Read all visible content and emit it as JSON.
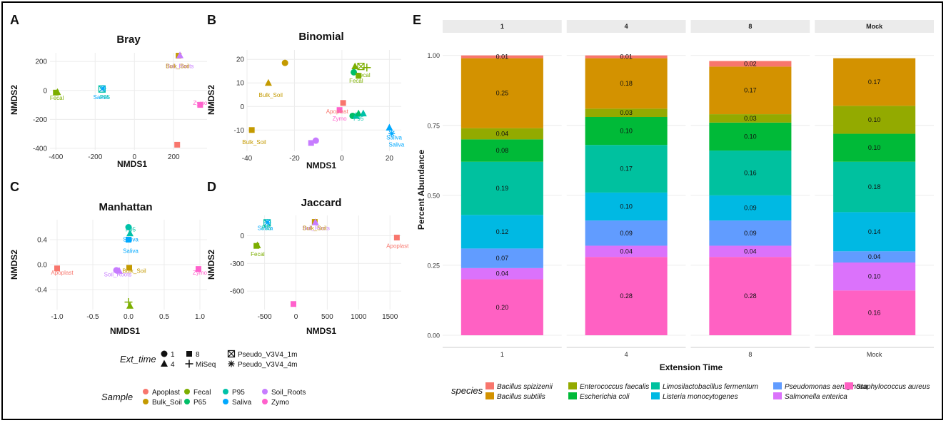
{
  "chart_data": [
    {
      "panel": "A",
      "type": "scatter",
      "title": "Bray",
      "xlabel": "NMDS1",
      "ylabel": "NMDS2",
      "xlim": [
        -430,
        370
      ],
      "ylim": [
        -410,
        260
      ],
      "xticks": [
        -400,
        -200,
        0,
        200
      ],
      "yticks": [
        200,
        0,
        -200,
        -400
      ],
      "points": [
        {
          "x": -400,
          "y": -15,
          "sample": "Fecal",
          "ext": "8"
        },
        {
          "x": -392,
          "y": -12,
          "sample": "Fecal",
          "ext": "4"
        },
        {
          "x": -165,
          "y": 10,
          "sample": "P95",
          "ext": "Pseudo_V3V4_1m"
        },
        {
          "x": -160,
          "y": 14,
          "sample": "Saliva",
          "ext": "Pseudo_V3V4_4m"
        },
        {
          "x": 225,
          "y": 240,
          "sample": "Bulk_Soil",
          "ext": "8"
        },
        {
          "x": 232,
          "y": 242,
          "sample": "Soil_Roots",
          "ext": "4"
        },
        {
          "x": 218,
          "y": -375,
          "sample": "Apoplast",
          "ext": "8"
        },
        {
          "x": 335,
          "y": -100,
          "sample": "Zymo",
          "ext": "8"
        }
      ],
      "labels": [
        {
          "text": "Fecal",
          "x": -395,
          "y": -65,
          "sample": "Fecal"
        },
        {
          "text": "Saliva",
          "x": -170,
          "y": -60,
          "sample": "Saliva"
        },
        {
          "text": "P95",
          "x": -150,
          "y": -60,
          "sample": "P95"
        },
        {
          "text": "Soil_Roots",
          "x": 232,
          "y": 155,
          "sample": "Soil_Roots"
        },
        {
          "text": "Bulk_Soil",
          "x": 220,
          "y": 155,
          "sample": "Bulk_Soil"
        },
        {
          "text": "Zymo",
          "x": 335,
          "y": -100,
          "sample": "Zymo"
        }
      ]
    },
    {
      "panel": "B",
      "type": "scatter",
      "title": "Binomial",
      "xlabel": "NMDS1",
      "ylabel": "NMDS2",
      "xlim": [
        -40,
        25
      ],
      "ylim": [
        -19,
        24
      ],
      "xticks": [
        -40,
        -20,
        0,
        20
      ],
      "yticks": [
        20,
        10,
        0,
        -10
      ],
      "points": [
        {
          "x": -24,
          "y": 18.5,
          "sample": "Bulk_Soil",
          "ext": "1"
        },
        {
          "x": -31,
          "y": 10,
          "sample": "Bulk_Soil",
          "ext": "4"
        },
        {
          "x": -38,
          "y": -10,
          "sample": "Bulk_Soil",
          "ext": "8"
        },
        {
          "x": 5.5,
          "y": 17,
          "sample": "Fecal",
          "ext": "4"
        },
        {
          "x": 8,
          "y": 17,
          "sample": "Fecal",
          "ext": "Pseudo_V3V4_1m"
        },
        {
          "x": 10.5,
          "y": 16.5,
          "sample": "Fecal",
          "ext": "MiSeq"
        },
        {
          "x": 5,
          "y": 14.5,
          "sample": "P65",
          "ext": "1"
        },
        {
          "x": 7,
          "y": 13,
          "sample": "Fecal",
          "ext": "8"
        },
        {
          "x": 0.5,
          "y": 1.5,
          "sample": "Apoplast",
          "ext": "8"
        },
        {
          "x": -1,
          "y": -1.5,
          "sample": "Zymo",
          "ext": "8"
        },
        {
          "x": 4.5,
          "y": -4,
          "sample": "P65",
          "ext": "1"
        },
        {
          "x": 6,
          "y": -4,
          "sample": "P95",
          "ext": "4"
        },
        {
          "x": 7,
          "y": -3,
          "sample": "P65",
          "ext": "4"
        },
        {
          "x": 9,
          "y": -3,
          "sample": "P95",
          "ext": "4"
        },
        {
          "x": -11,
          "y": -14.5,
          "sample": "Soil_Roots",
          "ext": "1"
        },
        {
          "x": -13,
          "y": -15.5,
          "sample": "Soil_Roots",
          "ext": "8"
        },
        {
          "x": 20,
          "y": -9,
          "sample": "Saliva",
          "ext": "4"
        },
        {
          "x": 21,
          "y": -11.5,
          "sample": "Saliva",
          "ext": "Pseudo_V3V4_4m"
        }
      ],
      "labels": [
        {
          "text": "Bulk_Soil",
          "x": -30,
          "y": 4,
          "sample": "Bulk_Soil"
        },
        {
          "text": "Bulk_Soil",
          "x": -37,
          "y": -16,
          "sample": "Bulk_Soil"
        },
        {
          "text": "Fecal",
          "x": 9,
          "y": 12.5,
          "sample": "Fecal"
        },
        {
          "text": "Fecal",
          "x": 6,
          "y": 10,
          "sample": "Fecal"
        },
        {
          "text": "Apoplast",
          "x": -2,
          "y": -3,
          "sample": "Apoplast"
        },
        {
          "text": "Zymo",
          "x": -1,
          "y": -6,
          "sample": "Zymo"
        },
        {
          "text": "P95",
          "x": 7,
          "y": -6,
          "sample": "P95"
        },
        {
          "text": "Saliva",
          "x": 22,
          "y": -14,
          "sample": "Saliva"
        },
        {
          "text": "Saliva",
          "x": 23,
          "y": -17,
          "sample": "Saliva"
        }
      ]
    },
    {
      "panel": "C",
      "type": "scatter",
      "title": "Manhattan",
      "xlabel": "NMDS1",
      "ylabel": "NMDS2",
      "xlim": [
        -1.1,
        1.1
      ],
      "ylim": [
        -0.72,
        0.72
      ],
      "xticks": [
        -1.0,
        -0.5,
        0.0,
        0.5,
        1.0
      ],
      "yticks": [
        0.4,
        0.0,
        -0.4
      ],
      "points": [
        {
          "x": -1.0,
          "y": -0.06,
          "sample": "Apoplast",
          "ext": "8"
        },
        {
          "x": 0.98,
          "y": -0.07,
          "sample": "Zymo",
          "ext": "8"
        },
        {
          "x": 0.0,
          "y": 0.6,
          "sample": "P95",
          "ext": "1"
        },
        {
          "x": 0.02,
          "y": 0.5,
          "sample": "P95",
          "ext": "4"
        },
        {
          "x": 0.0,
          "y": 0.4,
          "sample": "Saliva",
          "ext": "8"
        },
        {
          "x": 0.01,
          "y": -0.05,
          "sample": "Bulk_Soil",
          "ext": "8"
        },
        {
          "x": -0.17,
          "y": -0.09,
          "sample": "Soil_Roots",
          "ext": "1"
        },
        {
          "x": -0.13,
          "y": -0.1,
          "sample": "Soil_Roots",
          "ext": "4"
        },
        {
          "x": 0.0,
          "y": -0.6,
          "sample": "Fecal",
          "ext": "MiSeq"
        },
        {
          "x": 0.02,
          "y": -0.66,
          "sample": "Fecal",
          "ext": "4"
        }
      ],
      "labels": [
        {
          "text": "Apoplast",
          "x": -0.93,
          "y": -0.16,
          "sample": "Apoplast"
        },
        {
          "text": "Zymo",
          "x": 1.0,
          "y": -0.16,
          "sample": "Zymo"
        },
        {
          "text": "P95",
          "x": 0.03,
          "y": 0.53,
          "sample": "P95"
        },
        {
          "text": "Saliva",
          "x": 0.03,
          "y": 0.37,
          "sample": "Saliva"
        },
        {
          "text": "Saliva",
          "x": 0.03,
          "y": 0.19,
          "sample": "Saliva"
        },
        {
          "text": "Bulk_Soil",
          "x": 0.08,
          "y": -0.13,
          "sample": "Bulk_Soil"
        },
        {
          "text": "Soil_Roots",
          "x": -0.15,
          "y": -0.19,
          "sample": "Soil_Roots"
        }
      ]
    },
    {
      "panel": "D",
      "type": "scatter",
      "title": "Jaccard",
      "xlabel": "NMDS1",
      "ylabel": "NMDS2",
      "xlim": [
        -780,
        1680
      ],
      "ylim": [
        -800,
        220
      ],
      "xticks": [
        -500,
        0,
        500,
        1000,
        1500
      ],
      "yticks": [
        0,
        -300,
        -600
      ],
      "points": [
        {
          "x": -460,
          "y": 140,
          "sample": "P95",
          "ext": "Pseudo_V3V4_1m"
        },
        {
          "x": -450,
          "y": 145,
          "sample": "Saliva",
          "ext": "Pseudo_V3V4_4m"
        },
        {
          "x": 300,
          "y": 150,
          "sample": "Bulk_Soil",
          "ext": "8"
        },
        {
          "x": 310,
          "y": 145,
          "sample": "Soil_Roots",
          "ext": "4"
        },
        {
          "x": -630,
          "y": -110,
          "sample": "Fecal",
          "ext": "8"
        },
        {
          "x": -615,
          "y": -105,
          "sample": "Fecal",
          "ext": "4"
        },
        {
          "x": 1610,
          "y": -20,
          "sample": "Apoplast",
          "ext": "8"
        },
        {
          "x": -40,
          "y": -740,
          "sample": "Zymo",
          "ext": "8"
        }
      ],
      "labels": [
        {
          "text": "Saliva",
          "x": -490,
          "y": 60,
          "sample": "Saliva"
        },
        {
          "text": "P95",
          "x": -470,
          "y": 60,
          "sample": "P95"
        },
        {
          "text": "Soil_Roots",
          "x": 320,
          "y": 60,
          "sample": "Soil_Roots"
        },
        {
          "text": "Bulk_Soil",
          "x": 300,
          "y": 60,
          "sample": "Bulk_Soil"
        },
        {
          "text": "Fecal",
          "x": -610,
          "y": -220,
          "sample": "Fecal"
        },
        {
          "text": "Apoplast",
          "x": 1620,
          "y": -130,
          "sample": "Apoplast"
        }
      ]
    },
    {
      "panel": "E",
      "type": "bar",
      "stacked": true,
      "xlabel": "Extension Time",
      "ylabel": "Percent Abundance",
      "ylim": [
        0,
        1.04
      ],
      "yticks": [
        "0.00",
        "0.25",
        "0.50",
        "0.75",
        "1.00"
      ],
      "categories": [
        "1",
        "4",
        "8",
        "Mock"
      ],
      "series": [
        {
          "name": "Staphylococcus aureus",
          "values": [
            0.2,
            0.28,
            0.28,
            0.16
          ],
          "labels": [
            "0.20",
            "0.28",
            "0.28",
            "0.16"
          ]
        },
        {
          "name": "Salmonella enterica",
          "values": [
            0.04,
            0.04,
            0.04,
            0.1
          ],
          "labels": [
            "0.04",
            "0.04",
            "0.04",
            "0.10"
          ]
        },
        {
          "name": "Pseudomonas aeruginosa",
          "values": [
            0.07,
            0.09,
            0.09,
            0.04
          ],
          "labels": [
            "0.07",
            "0.09",
            "0.09",
            "0.04"
          ]
        },
        {
          "name": "Listeria monocytogenes",
          "values": [
            0.12,
            0.1,
            0.09,
            0.14
          ],
          "labels": [
            "0.12",
            "0.10",
            "0.09",
            "0.14"
          ]
        },
        {
          "name": "Limosilactobacillus fermentum",
          "values": [
            0.19,
            0.17,
            0.16,
            0.18
          ],
          "labels": [
            "0.19",
            "0.17",
            "0.16",
            "0.18"
          ]
        },
        {
          "name": "Escherichia coli",
          "values": [
            0.08,
            0.1,
            0.1,
            0.1
          ],
          "labels": [
            "0.08",
            "0.10",
            "0.10",
            "0.10"
          ]
        },
        {
          "name": "Enterococcus faecalis",
          "values": [
            0.04,
            0.03,
            0.03,
            0.1
          ],
          "labels": [
            "0.04",
            "0.03",
            "0.03",
            "0.10"
          ]
        },
        {
          "name": "Bacillus subtilis",
          "values": [
            0.25,
            0.18,
            0.17,
            0.17
          ],
          "labels": [
            "0.25",
            "0.18",
            "0.17",
            "0.17"
          ]
        },
        {
          "name": "Bacillus spizizenii",
          "values": [
            0.01,
            0.01,
            0.02,
            0.0
          ],
          "labels": [
            "0.01",
            "0.01",
            "0.02",
            ""
          ]
        }
      ]
    }
  ],
  "panel_letters": {
    "a": "A",
    "b": "B",
    "c": "C",
    "d": "D",
    "e": "E"
  },
  "colors": {
    "Apoplast": "#F8766D",
    "Bulk_Soil": "#C49A00",
    "Fecal": "#7CAE00",
    "P65": "#00BE67",
    "P95": "#00C1A8",
    "Saliva": "#00A9FF",
    "Soil_Roots": "#C77CFF",
    "Zymo": "#FF61CC"
  },
  "species_colors": {
    "Bacillus spizizenii": "#F8766D",
    "Bacillus subtilis": "#D39200",
    "Enterococcus faecalis": "#93AA00",
    "Escherichia coli": "#00BA38",
    "Limosilactobacillus fermentum": "#00C19F",
    "Listeria monocytogenes": "#00B9E3",
    "Pseudomonas aeruginosa": "#619CFF",
    "Salmonella enterica": "#DB72FB",
    "Staphylococcus aureus": "#FF61C3"
  },
  "legend_ext": {
    "title": "Ext_time",
    "items": [
      {
        "label": "1",
        "shape": "circle"
      },
      {
        "label": "4",
        "shape": "triangle"
      },
      {
        "label": "8",
        "shape": "square"
      },
      {
        "label": "MiSeq",
        "shape": "plus"
      },
      {
        "label": "Pseudo_V3V4_1m",
        "shape": "boxcross"
      },
      {
        "label": "Pseudo_V3V4_4m",
        "shape": "asterisk"
      }
    ]
  },
  "legend_sample": {
    "title": "Sample",
    "items": [
      "Apoplast",
      "Bulk_Soil",
      "Fecal",
      "P65",
      "P95",
      "Saliva",
      "Soil_Roots",
      "Zymo"
    ]
  },
  "legend_species": {
    "title": "species",
    "items": [
      "Bacillus spizizenii",
      "Bacillus subtilis",
      "Enterococcus faecalis",
      "Escherichia coli",
      "Limosilactobacillus fermentum",
      "Listeria monocytogenes",
      "Pseudomonas aeruginosa",
      "Salmonella enterica",
      "Staphylococcus aureus"
    ]
  }
}
